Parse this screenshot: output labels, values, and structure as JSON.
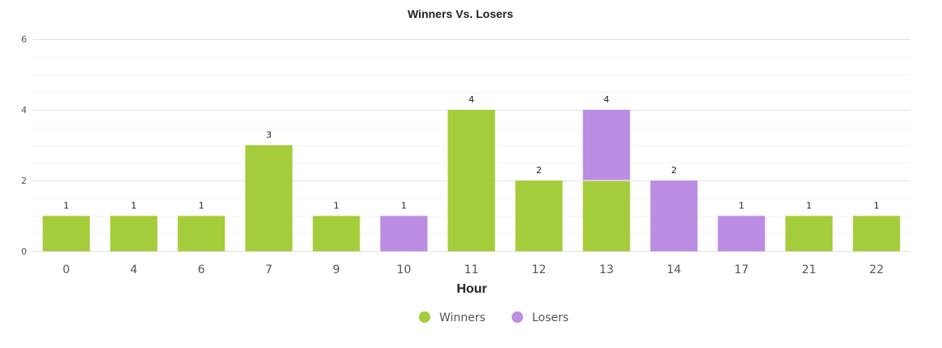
{
  "chart_data": {
    "type": "bar",
    "stacked": true,
    "title": "Winners Vs. Losers",
    "xlabel": "Hour",
    "ylabel": "",
    "ylim": [
      0,
      6
    ],
    "yticks": [
      "0",
      "2",
      "4",
      "6"
    ],
    "categories": [
      "0",
      "4",
      "6",
      "7",
      "9",
      "10",
      "11",
      "12",
      "13",
      "14",
      "17",
      "21",
      "22"
    ],
    "series": [
      {
        "name": "Winners",
        "color": "#a5cc3b",
        "values": [
          1,
          1,
          1,
          3,
          1,
          0,
          4,
          2,
          2,
          0,
          0,
          1,
          1
        ]
      },
      {
        "name": "Losers",
        "color": "#bb8de3",
        "values": [
          0,
          0,
          0,
          0,
          0,
          1,
          0,
          0,
          2,
          2,
          1,
          0,
          0
        ]
      }
    ],
    "totals": [
      "1",
      "1",
      "1",
      "3",
      "1",
      "1",
      "4",
      "2",
      "4",
      "2",
      "1",
      "1",
      "1"
    ],
    "grid": true,
    "legend_position": "bottom"
  }
}
